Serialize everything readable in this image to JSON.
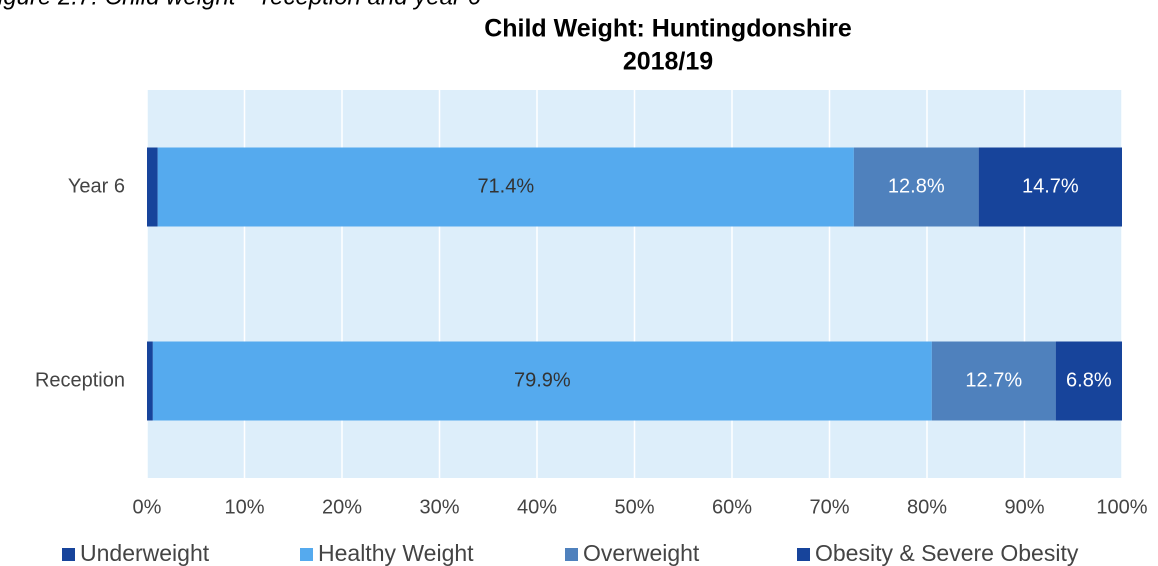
{
  "caption": "igure 2.7: Child weight – reception and year 6",
  "chart_data": {
    "type": "stacked-barh",
    "title": [
      "Child Weight: Huntingdonshire",
      "2018/19"
    ],
    "categories": [
      "Year 6",
      "Reception"
    ],
    "series": [
      {
        "name": "Underweight",
        "color": "#17449b",
        "values": [
          1.1,
          0.6
        ],
        "value_labels": [
          null,
          null
        ]
      },
      {
        "name": "Healthy Weight",
        "color": "#55aaee",
        "values": [
          71.4,
          79.9
        ],
        "value_labels": [
          "71.4%",
          "79.9%"
        ]
      },
      {
        "name": "Overweight",
        "color": "#4f81bd",
        "values": [
          12.8,
          12.7
        ],
        "value_labels": [
          "12.8%",
          "12.7%"
        ]
      },
      {
        "name": "Obesity & Severe Obesity",
        "color": "#17449b",
        "values": [
          14.7,
          6.8
        ],
        "value_labels": [
          "14.7%",
          "6.8%"
        ]
      }
    ],
    "xlim": [
      0,
      100
    ],
    "xticks": [
      {
        "value": 0,
        "label": "0%"
      },
      {
        "value": 10,
        "label": "10%"
      },
      {
        "value": 20,
        "label": "20%"
      },
      {
        "value": 30,
        "label": "30%"
      },
      {
        "value": 40,
        "label": "40%"
      },
      {
        "value": 50,
        "label": "50%"
      },
      {
        "value": 60,
        "label": "60%"
      },
      {
        "value": 70,
        "label": "70%"
      },
      {
        "value": 80,
        "label": "80%"
      },
      {
        "value": 90,
        "label": "90%"
      },
      {
        "value": 100,
        "label": "100%"
      }
    ],
    "grid": true,
    "legend": "bottom"
  }
}
